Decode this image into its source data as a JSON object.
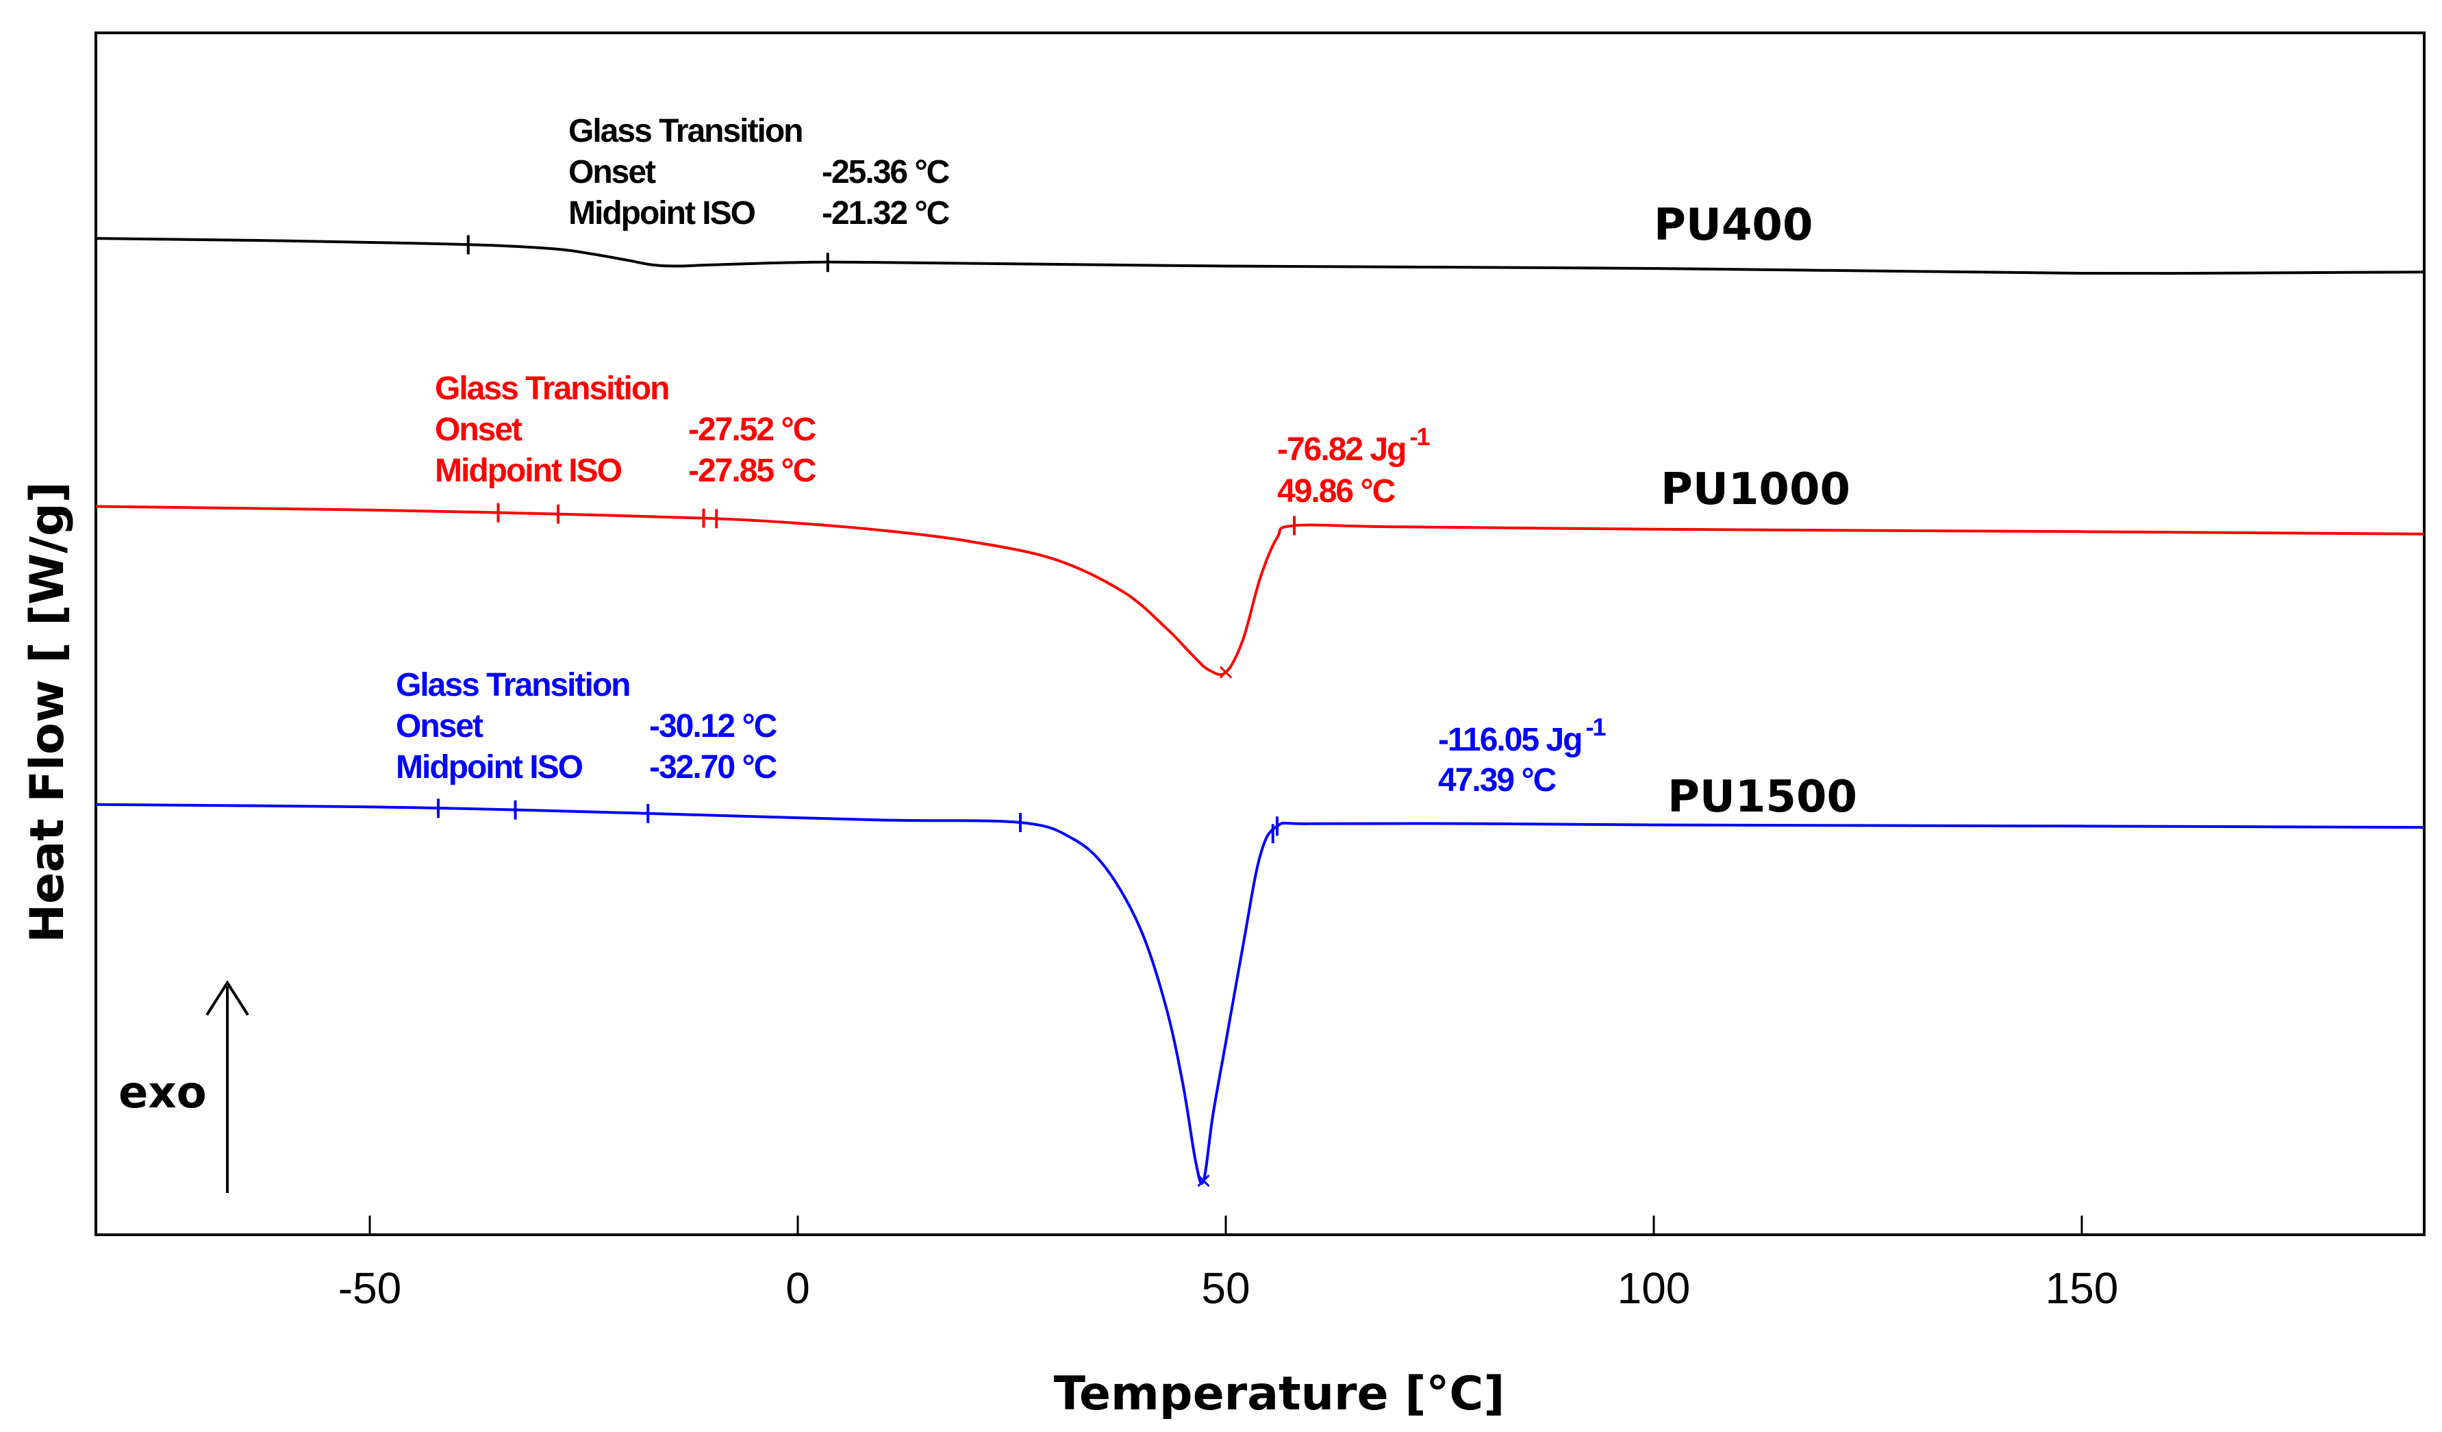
{
  "chart_data": {
    "type": "line",
    "title": "",
    "xlabel": "Temperature [°C]",
    "ylabel": "Heat Flow [ [W/g]",
    "xlim": [
      -82,
      190
    ],
    "ylim": [
      0,
      100
    ],
    "xticks": [
      -50,
      0,
      50,
      100,
      150
    ],
    "exo_label": "exo",
    "series": [
      {
        "name": "PU400",
        "label": "PU400",
        "color": "#000000",
        "x": [
          -82,
          -60,
          -45,
          -35,
          -28,
          -24,
          -20,
          -17,
          -14,
          -10,
          0,
          10,
          50,
          100,
          150,
          190
        ],
        "y": [
          82.9,
          82.7,
          82.5,
          82.3,
          82.0,
          81.6,
          81.1,
          80.7,
          80.6,
          80.7,
          80.9,
          80.9,
          80.6,
          80.4,
          80.0,
          80.1
        ],
        "annotation": {
          "title": "Glass Transition",
          "rows": [
            {
              "label": "Onset",
              "value": "-25.36 °C"
            },
            {
              "label": "Midpoint ISO",
              "value": "-21.32 °C"
            }
          ]
        },
        "markers": [
          -38.5,
          3.5
        ]
      },
      {
        "name": "PU1000",
        "label": "PU1000",
        "color": "#ff0000",
        "x": [
          -82,
          -50,
          -30,
          -10,
          0,
          10,
          20,
          30,
          38,
          43,
          46,
          48,
          50,
          52,
          54,
          56,
          58,
          70,
          100,
          150,
          190
        ],
        "y": [
          60.6,
          60.3,
          60.0,
          59.6,
          59.2,
          58.6,
          57.7,
          56.2,
          53.5,
          50.5,
          48.3,
          47.0,
          46.8,
          49.5,
          54.6,
          58.0,
          59.0,
          58.9,
          58.7,
          58.5,
          58.3
        ],
        "annotation": {
          "title": "Glass Transition",
          "rows": [
            {
              "label": "Onset",
              "value": "-27.52 °C"
            },
            {
              "label": "Midpoint ISO",
              "value": "-27.85 °C"
            }
          ]
        },
        "peak_enthalpy": "-76.82 Jg",
        "peak_enthalpy_exp": "-1",
        "peak_temperature": "49.86 °C",
        "markers": [
          -35,
          -28,
          -11,
          -9.5,
          58
        ]
      },
      {
        "name": "PU1500",
        "label": "PU1500",
        "color": "#0000ff",
        "x": [
          -82,
          -50,
          -30,
          -10,
          10,
          26,
          32,
          36,
          40,
          43,
          45,
          46.5,
          47.4,
          48.5,
          50,
          52,
          54,
          56,
          60,
          80,
          100,
          150,
          190
        ],
        "y": [
          35.8,
          35.6,
          35.3,
          34.9,
          34.5,
          34.3,
          33.0,
          30.5,
          25.5,
          19.0,
          12.5,
          6.0,
          4.5,
          10.0,
          16.0,
          24.0,
          31.5,
          34.0,
          34.2,
          34.2,
          34.1,
          34.0,
          33.9
        ],
        "annotation": {
          "title": "Glass Transition",
          "rows": [
            {
              "label": "Onset",
              "value": "-30.12 °C"
            },
            {
              "label": "Midpoint ISO",
              "value": "-32.70 °C"
            }
          ]
        },
        "peak_enthalpy": "-116.05 Jg",
        "peak_enthalpy_exp": "-1",
        "peak_temperature": "47.39 °C",
        "markers": [
          -42,
          -33,
          -17.5,
          26,
          55.5,
          56
        ]
      }
    ]
  }
}
